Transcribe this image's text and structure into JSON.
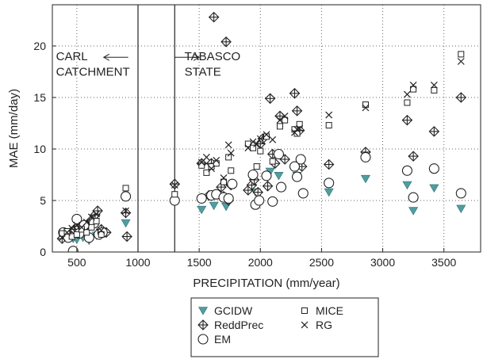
{
  "chart_data": {
    "type": "scatter",
    "xlabel": "PRECIPITATION (mm/year)",
    "ylabel": "MAE (mm/day)",
    "xlim": [
      300,
      3800
    ],
    "ylim": [
      0,
      24
    ],
    "xticks": [
      500,
      1000,
      1500,
      2000,
      2500,
      3000,
      3500
    ],
    "yticks": [
      0,
      5,
      10,
      15,
      20
    ],
    "grid": "dotted",
    "legend_position": "bottom",
    "dividers": [
      1000,
      1300
    ],
    "annotations": [
      {
        "text": "CARL",
        "x": 330,
        "y": 18.6
      },
      {
        "text": "CATCHMENT",
        "x": 330,
        "y": 17.1
      },
      {
        "text": "TABASCO",
        "x": 1380,
        "y": 18.6
      },
      {
        "text": "STATE",
        "x": 1380,
        "y": 17.1
      }
    ],
    "arrows": [
      {
        "from": 720,
        "to": 920,
        "y": 18.9,
        "direction": "left"
      },
      {
        "from": 1300,
        "to": 1500,
        "y": 18.9,
        "direction": "right"
      }
    ],
    "series": [
      {
        "name": "GCIDW",
        "marker": "triangle-down",
        "color": "#4f9ea0",
        "points": [
          [
            420,
            1.5
          ],
          [
            470,
            1.3
          ],
          [
            500,
            1.2
          ],
          [
            550,
            1.4
          ],
          [
            600,
            1.1
          ],
          [
            660,
            1.6
          ],
          [
            900,
            2.8
          ],
          [
            1520,
            4.1
          ],
          [
            1620,
            4.5
          ],
          [
            1720,
            4.4
          ],
          [
            1960,
            5.8
          ],
          [
            2080,
            7.8
          ],
          [
            2150,
            7.4
          ],
          [
            2300,
            7.4
          ],
          [
            2560,
            5.8
          ],
          [
            2860,
            7.1
          ],
          [
            3200,
            6.5
          ],
          [
            3250,
            4.0
          ],
          [
            3420,
            6.2
          ],
          [
            3640,
            4.2
          ]
        ]
      },
      {
        "name": "ReddPrec",
        "marker": "crossed-diamond",
        "color": "#222222",
        "points": [
          [
            380,
            1.3
          ],
          [
            420,
            1.6
          ],
          [
            450,
            1.9
          ],
          [
            480,
            2.2
          ],
          [
            510,
            2.5
          ],
          [
            540,
            2.0
          ],
          [
            580,
            2.6
          ],
          [
            620,
            3.1
          ],
          [
            650,
            3.6
          ],
          [
            670,
            4.0
          ],
          [
            700,
            2.2
          ],
          [
            740,
            1.9
          ],
          [
            900,
            3.8
          ],
          [
            910,
            1.5
          ],
          [
            1300,
            6.6
          ],
          [
            1520,
            8.6
          ],
          [
            1580,
            5.5
          ],
          [
            1600,
            8.6
          ],
          [
            1620,
            22.8
          ],
          [
            1680,
            6.3
          ],
          [
            1700,
            5.4
          ],
          [
            1720,
            20.4
          ],
          [
            1740,
            5.0
          ],
          [
            1760,
            6.5
          ],
          [
            1900,
            6.0
          ],
          [
            1930,
            6.5
          ],
          [
            1950,
            7.0
          ],
          [
            1980,
            5.8
          ],
          [
            2000,
            10.5
          ],
          [
            2020,
            11.0
          ],
          [
            2060,
            6.4
          ],
          [
            2080,
            14.9
          ],
          [
            2100,
            9.5
          ],
          [
            2120,
            8.6
          ],
          [
            2160,
            13.2
          ],
          [
            2200,
            9.0
          ],
          [
            2280,
            15.4
          ],
          [
            2300,
            13.7
          ],
          [
            2320,
            11.8
          ],
          [
            2340,
            8.3
          ],
          [
            2560,
            8.5
          ],
          [
            2860,
            9.7
          ],
          [
            3200,
            12.8
          ],
          [
            3250,
            9.3
          ],
          [
            3420,
            11.7
          ],
          [
            3640,
            15.0
          ]
        ]
      },
      {
        "name": "EM",
        "marker": "circle",
        "color": "#222222",
        "points": [
          [
            390,
            1.9
          ],
          [
            430,
            1.4
          ],
          [
            470,
            0.1
          ],
          [
            500,
            3.2
          ],
          [
            520,
            1.8
          ],
          [
            560,
            2.6
          ],
          [
            600,
            1.4
          ],
          [
            640,
            2.8
          ],
          [
            680,
            1.7
          ],
          [
            710,
            1.9
          ],
          [
            900,
            5.4
          ],
          [
            1300,
            5.0
          ],
          [
            1520,
            5.2
          ],
          [
            1600,
            5.5
          ],
          [
            1640,
            5.6
          ],
          [
            1700,
            5.3
          ],
          [
            1740,
            5.2
          ],
          [
            1770,
            6.6
          ],
          [
            1940,
            7.5
          ],
          [
            1960,
            4.6
          ],
          [
            1990,
            5.0
          ],
          [
            2050,
            7.4
          ],
          [
            2100,
            4.9
          ],
          [
            2150,
            9.5
          ],
          [
            2170,
            6.3
          ],
          [
            2280,
            8.3
          ],
          [
            2300,
            7.3
          ],
          [
            2330,
            9.0
          ],
          [
            2350,
            5.7
          ],
          [
            2560,
            6.7
          ],
          [
            2860,
            9.2
          ],
          [
            3200,
            7.9
          ],
          [
            3250,
            5.3
          ],
          [
            3420,
            8.1
          ],
          [
            3640,
            5.7
          ]
        ]
      },
      {
        "name": "MICE",
        "marker": "square",
        "color": "#222222",
        "points": [
          [
            380,
            1.8
          ],
          [
            420,
            2.0
          ],
          [
            460,
            1.5
          ],
          [
            500,
            1.7
          ],
          [
            540,
            2.2
          ],
          [
            580,
            1.9
          ],
          [
            620,
            2.4
          ],
          [
            660,
            3.0
          ],
          [
            700,
            1.7
          ],
          [
            900,
            6.2
          ],
          [
            1300,
            5.6
          ],
          [
            1520,
            8.4
          ],
          [
            1560,
            7.7
          ],
          [
            1600,
            8.3
          ],
          [
            1640,
            8.6
          ],
          [
            1700,
            6.8
          ],
          [
            1740,
            9.2
          ],
          [
            1760,
            7.9
          ],
          [
            1900,
            10.5
          ],
          [
            1940,
            10.1
          ],
          [
            1970,
            8.3
          ],
          [
            2000,
            9.8
          ],
          [
            2050,
            11.2
          ],
          [
            2100,
            8.8
          ],
          [
            2160,
            12.2
          ],
          [
            2200,
            12.8
          ],
          [
            2280,
            11.9
          ],
          [
            2300,
            11.5
          ],
          [
            2320,
            12.4
          ],
          [
            2560,
            12.3
          ],
          [
            2860,
            14.3
          ],
          [
            3200,
            14.5
          ],
          [
            3250,
            15.8
          ],
          [
            3420,
            15.7
          ],
          [
            3640,
            19.2
          ]
        ]
      },
      {
        "name": "RG",
        "marker": "x",
        "color": "#222222",
        "points": [
          [
            380,
            1.4
          ],
          [
            420,
            1.9
          ],
          [
            460,
            2.3
          ],
          [
            500,
            2.6
          ],
          [
            540,
            2.4
          ],
          [
            580,
            2.9
          ],
          [
            620,
            3.4
          ],
          [
            660,
            3.7
          ],
          [
            700,
            2.1
          ],
          [
            900,
            4.0
          ],
          [
            1300,
            6.5
          ],
          [
            1520,
            8.7
          ],
          [
            1560,
            9.2
          ],
          [
            1600,
            8.1
          ],
          [
            1640,
            8.9
          ],
          [
            1700,
            7.2
          ],
          [
            1740,
            10.4
          ],
          [
            1760,
            9.6
          ],
          [
            1900,
            10.1
          ],
          [
            1940,
            10.7
          ],
          [
            1970,
            10.5
          ],
          [
            2000,
            11.0
          ],
          [
            2050,
            11.4
          ],
          [
            2100,
            10.9
          ],
          [
            2160,
            12.8
          ],
          [
            2200,
            13.2
          ],
          [
            2280,
            11.6
          ],
          [
            2300,
            11.9
          ],
          [
            2320,
            12.0
          ],
          [
            2560,
            13.3
          ],
          [
            2860,
            14.0
          ],
          [
            3200,
            15.3
          ],
          [
            3250,
            16.2
          ],
          [
            3420,
            16.2
          ],
          [
            3640,
            18.5
          ]
        ]
      }
    ]
  }
}
